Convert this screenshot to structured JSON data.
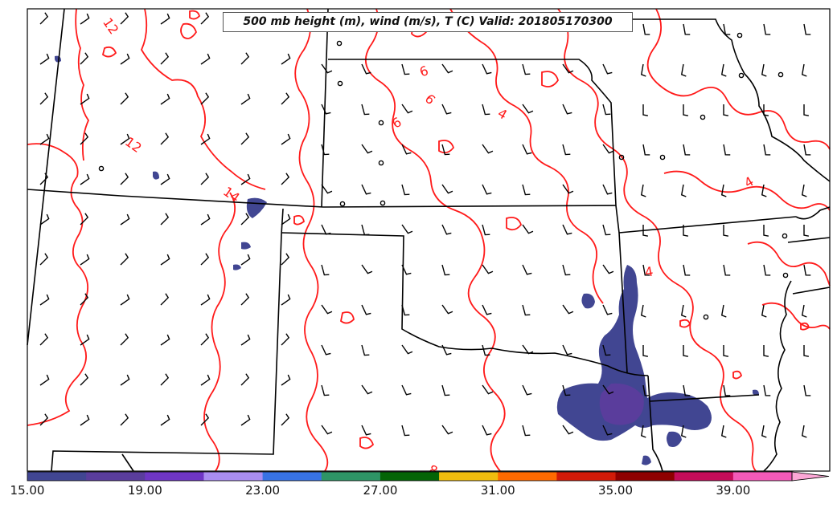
{
  "title": "500 mb height (m), wind (m/s), T (C) Valid: 201805170300",
  "contour_labels": [
    "12",
    "12",
    "14",
    "6",
    "6",
    "6",
    "4",
    "4",
    "4",
    "8"
  ],
  "colorbar": {
    "tick_labels": [
      "15.00",
      "19.00",
      "23.00",
      "27.00",
      "31.00",
      "35.00",
      "39.00"
    ],
    "colors": [
      "#414692",
      "#5a3d9c",
      "#6f36c4",
      "#a98df0",
      "#3872e3",
      "#2e9466",
      "#046406",
      "#f0bc0e",
      "#ff6a00",
      "#d11b08",
      "#8e0000",
      "#c40c59",
      "#f25ab8",
      "#fca7d6"
    ]
  },
  "colors": {
    "contour": "#ff1a1a",
    "borders": "#000000",
    "precip": "#414692",
    "precip_dark": "#5a3d9c"
  }
}
